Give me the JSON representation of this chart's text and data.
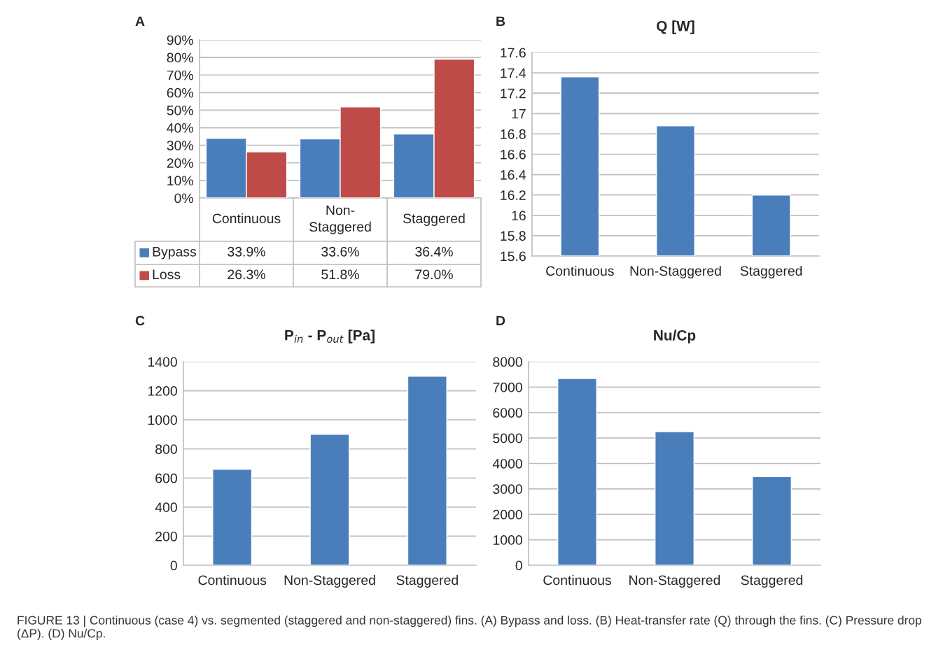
{
  "chart_data": [
    {
      "type": "bar",
      "categories": [
        "Continuous",
        "Non-\nStaggered",
        "Staggered"
      ],
      "series": [
        {
          "name": "Bypass",
          "color": "#4a7ebb",
          "values": [
            33.9,
            33.6,
            36.4
          ],
          "value_labels": [
            "33.9%",
            "33.6%",
            "36.4%"
          ]
        },
        {
          "name": "Loss",
          "color": "#be4b48",
          "values": [
            26.3,
            51.8,
            79.0
          ],
          "value_labels": [
            "26.3%",
            "51.8%",
            "79.0%"
          ]
        }
      ],
      "ylim": [
        0,
        90
      ],
      "yticks": [
        {
          "value": 0,
          "label": "0%"
        },
        {
          "value": 10,
          "label": "10%"
        },
        {
          "value": 20,
          "label": "20%"
        },
        {
          "value": 30,
          "label": "30%"
        },
        {
          "value": 40,
          "label": "40%"
        },
        {
          "value": 50,
          "label": "50%"
        },
        {
          "value": 60,
          "label": "60%"
        },
        {
          "value": 70,
          "label": "70%"
        },
        {
          "value": 80,
          "label": "80%"
        },
        {
          "value": 90,
          "label": "90%"
        }
      ],
      "grid": "y",
      "legend": "bottom left",
      "annotations": [
        "A"
      ]
    },
    {
      "type": "bar",
      "title": "Q [W]",
      "categories": [
        "Continuous",
        "Non-Staggered",
        "Staggered"
      ],
      "values": [
        17.36,
        16.88,
        16.2
      ],
      "color": "#4a7ebb",
      "ylim": [
        15.6,
        17.6
      ],
      "yticks": [
        15.6,
        15.8,
        16,
        16.2,
        16.4,
        16.6,
        16.8,
        17,
        17.2,
        17.4,
        17.6
      ],
      "grid": "y",
      "annotations": [
        "B"
      ]
    },
    {
      "type": "bar",
      "title": "P$_{in}$ - P$_{out}$ [Pa]",
      "categories": [
        "Continuous",
        "Non-Staggered",
        "Staggered"
      ],
      "values": [
        660,
        900,
        1300
      ],
      "color": "#4a7ebb",
      "ylim": [
        0,
        1400
      ],
      "yticks": [
        0,
        200,
        400,
        600,
        800,
        1000,
        1200,
        1400
      ],
      "grid": "y",
      "annotations": [
        "C"
      ]
    },
    {
      "type": "bar",
      "title": "Nu/Cp",
      "categories": [
        "Continuous",
        "Non-Staggered",
        "Staggered"
      ],
      "values": [
        7340,
        5250,
        3480
      ],
      "color": "#4a7ebb",
      "ylim": [
        0,
        8000
      ],
      "yticks": [
        0,
        1000,
        2000,
        3000,
        4000,
        5000,
        6000,
        7000,
        8000
      ],
      "grid": "y",
      "annotations": [
        "D",
        "FIGURE 13 | Continuous (case 4) vs. segmented (staggered and non-staggered) fins. (A) Bypass and loss. (B) Heat-transfer rate (Q) through the fins. (C) Pressure drop (ΔP). (D) Nu/Cp."
      ]
    }
  ]
}
